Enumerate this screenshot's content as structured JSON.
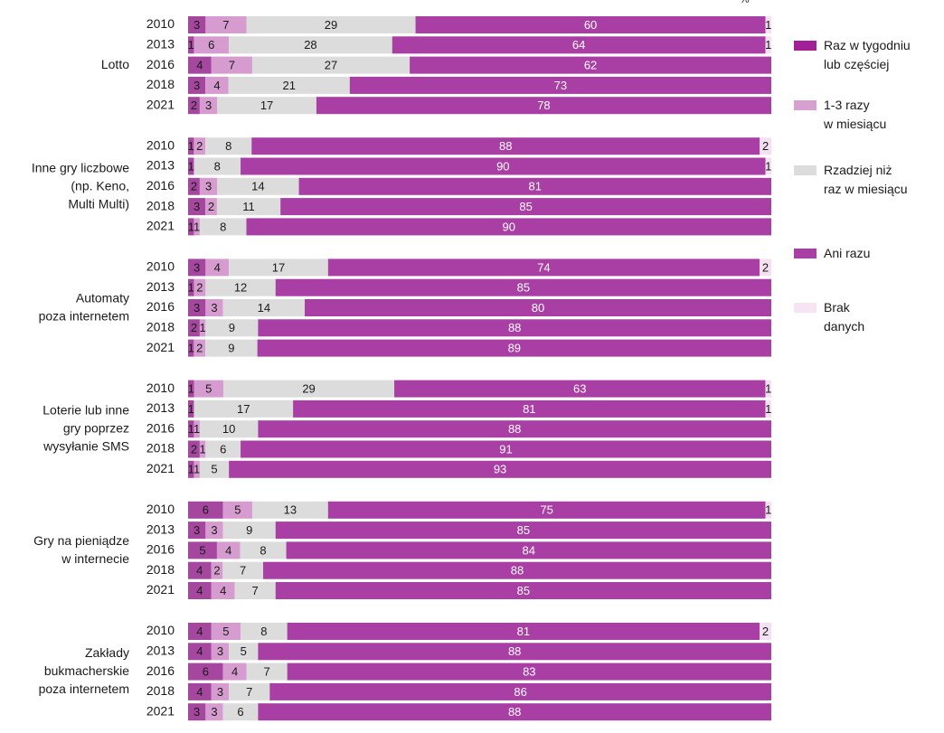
{
  "unit_label": "%",
  "legend": [
    {
      "label": "Raz w tygodniu\nlub częściej",
      "color": "#a21f98"
    },
    {
      "label": "1-3 razy\nw miesiącu",
      "color": "#d6a0d1"
    },
    {
      "label": "Rzadziej niż\nraz w miesiącu",
      "color": "#dcdcdc"
    },
    {
      "label": "Ani razu",
      "color": "#a93ea4"
    },
    {
      "label": "Brak\ndanych",
      "color": "#f6e4f4"
    }
  ],
  "chart_data": {
    "type": "bar",
    "orientation": "horizontal",
    "stacked": true,
    "unit": "%",
    "series_names": [
      "Raz w tygodniu lub częściej",
      "1-3 razy w miesiącu",
      "Rzadziej niż raz w miesiącu",
      "Ani razu",
      "Brak danych"
    ],
    "colors": [
      "#a5479f",
      "#d69ccf",
      "#dcdcdc",
      "#a93ea4",
      "#f3e0f1"
    ],
    "label_colors": [
      "#1a1a1a",
      "#1a1a1a",
      "#1a1a1a",
      "#ffffff",
      "#1a1a1a"
    ],
    "groups": [
      {
        "label": "Lotto",
        "rows": [
          {
            "year": "2010",
            "values": [
              3,
              7,
              29,
              60,
              1
            ]
          },
          {
            "year": "2013",
            "values": [
              1,
              6,
              28,
              64,
              1
            ]
          },
          {
            "year": "2016",
            "values": [
              4,
              7,
              27,
              62,
              0
            ]
          },
          {
            "year": "2018",
            "values": [
              3,
              4,
              21,
              73,
              0
            ]
          },
          {
            "year": "2021",
            "values": [
              2,
              3,
              17,
              78,
              0
            ]
          }
        ]
      },
      {
        "label": "Inne gry liczbowe\n(np. Keno,\nMulti Multi)",
        "rows": [
          {
            "year": "2010",
            "values": [
              1,
              2,
              8,
              88,
              2
            ]
          },
          {
            "year": "2013",
            "values": [
              1,
              0,
              8,
              90,
              1
            ]
          },
          {
            "year": "2016",
            "values": [
              2,
              3,
              14,
              81,
              0
            ]
          },
          {
            "year": "2018",
            "values": [
              3,
              2,
              11,
              85,
              0
            ]
          },
          {
            "year": "2021",
            "values": [
              1,
              1,
              8,
              90,
              0
            ]
          }
        ]
      },
      {
        "label": "Automaty\npoza internetem",
        "rows": [
          {
            "year": "2010",
            "values": [
              3,
              4,
              17,
              74,
              2
            ]
          },
          {
            "year": "2013",
            "values": [
              1,
              2,
              12,
              85,
              0
            ]
          },
          {
            "year": "2016",
            "values": [
              3,
              3,
              14,
              80,
              0
            ]
          },
          {
            "year": "2018",
            "values": [
              2,
              1,
              9,
              88,
              0
            ]
          },
          {
            "year": "2021",
            "values": [
              1,
              2,
              9,
              89,
              0
            ]
          }
        ]
      },
      {
        "label": "Loterie lub inne\ngry poprzez\nwysyłanie SMS",
        "rows": [
          {
            "year": "2010",
            "values": [
              1,
              5,
              29,
              63,
              1
            ]
          },
          {
            "year": "2013",
            "values": [
              1,
              0,
              17,
              81,
              1
            ]
          },
          {
            "year": "2016",
            "values": [
              1,
              1,
              10,
              88,
              0
            ]
          },
          {
            "year": "2018",
            "values": [
              2,
              1,
              6,
              91,
              0
            ]
          },
          {
            "year": "2021",
            "values": [
              1,
              1,
              5,
              93,
              0
            ]
          }
        ]
      },
      {
        "label": "Gry na pieniądze\nw internecie",
        "rows": [
          {
            "year": "2010",
            "values": [
              6,
              5,
              13,
              75,
              1
            ]
          },
          {
            "year": "2013",
            "values": [
              3,
              3,
              9,
              85,
              0
            ]
          },
          {
            "year": "2016",
            "values": [
              5,
              4,
              8,
              84,
              0
            ]
          },
          {
            "year": "2018",
            "values": [
              4,
              2,
              7,
              88,
              0
            ]
          },
          {
            "year": "2021",
            "values": [
              4,
              4,
              7,
              85,
              0
            ]
          }
        ]
      },
      {
        "label": "Zakłady\nbukmacherskie\npoza internetem",
        "rows": [
          {
            "year": "2010",
            "values": [
              4,
              5,
              8,
              81,
              2
            ]
          },
          {
            "year": "2013",
            "values": [
              4,
              3,
              5,
              88,
              0
            ]
          },
          {
            "year": "2016",
            "values": [
              6,
              4,
              7,
              83,
              0
            ]
          },
          {
            "year": "2018",
            "values": [
              4,
              3,
              7,
              86,
              0
            ]
          },
          {
            "year": "2021",
            "values": [
              3,
              3,
              6,
              88,
              0
            ]
          }
        ]
      }
    ],
    "xlim": [
      0,
      100
    ]
  }
}
